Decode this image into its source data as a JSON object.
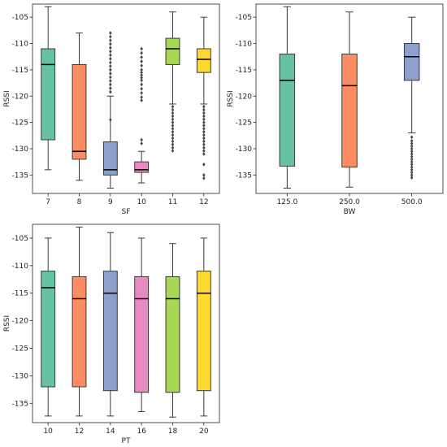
{
  "chart_data": [
    {
      "type": "box",
      "xlabel": "SF",
      "ylabel": "RSSI",
      "ylim": [
        -138.5,
        -102.5
      ],
      "yticks": [
        -105,
        -110,
        -115,
        -120,
        -125,
        -130,
        -135
      ],
      "categories": [
        "7",
        "8",
        "9",
        "10",
        "11",
        "12"
      ],
      "colors": [
        "#66c2a5",
        "#fc8d62",
        "#8da0cb",
        "#e78ac3",
        "#a6d854",
        "#ffd92f"
      ],
      "boxes": [
        {
          "q1": -128.3,
          "median": -114.0,
          "q3": -111.0,
          "whislo": -134.0,
          "whishi": -103.0,
          "fliers": []
        },
        {
          "q1": -132.0,
          "median": -130.5,
          "q3": -114.0,
          "whislo": -136.0,
          "whishi": -108.0,
          "fliers": []
        },
        {
          "q1": -135.0,
          "median": -134.0,
          "q3": -128.7,
          "whislo": -137.5,
          "whishi": -120.0,
          "fliers": [
            -108,
            -108.7,
            -109.4,
            -110.1,
            -110.8,
            -111.5,
            -112.2,
            -112.9,
            -113.6,
            -114.3,
            -115,
            -115.7,
            -116.4,
            -117.1,
            -117.8,
            -118.5,
            -119.2,
            -124.5
          ]
        },
        {
          "q1": -134.5,
          "median": -134.0,
          "q3": -132.5,
          "whislo": -136.5,
          "whishi": -130.5,
          "fliers": [
            -111,
            -111.8,
            -112.6,
            -113.4,
            -114.2,
            -115,
            -115.5,
            -116,
            -116.5,
            -117,
            -117.8,
            -118.6,
            -119.4,
            -120.2,
            -120.8,
            -128.3,
            -129
          ]
        },
        {
          "q1": -114.0,
          "median": -111.0,
          "q3": -109.0,
          "whislo": -121.5,
          "whishi": -104.0,
          "fliers": [
            -122,
            -122.6,
            -123.2,
            -123.8,
            -124.4,
            -125,
            -125.6,
            -126.2,
            -126.8,
            -127.4,
            -128,
            -128.6,
            -129.2,
            -129.8,
            -130.4
          ]
        },
        {
          "q1": -115.5,
          "median": -113.0,
          "q3": -111.0,
          "whislo": -121.5,
          "whishi": -105.0,
          "fliers": [
            -122,
            -122.6,
            -123.2,
            -123.8,
            -124.4,
            -125,
            -125.6,
            -126.2,
            -126.8,
            -127.4,
            -128,
            -128.6,
            -129.2,
            -129.8,
            -130.4,
            -131,
            -133,
            -135,
            -135.6
          ]
        }
      ]
    },
    {
      "type": "box",
      "xlabel": "BW",
      "ylabel": "RSSI",
      "ylim": [
        -138.5,
        -102.5
      ],
      "yticks": [
        -105,
        -110,
        -115,
        -120,
        -125,
        -130,
        -135
      ],
      "categories": [
        "125.0",
        "250.0",
        "500.0"
      ],
      "colors": [
        "#66c2a5",
        "#fc8d62",
        "#8da0cb"
      ],
      "boxes": [
        {
          "q1": -133.3,
          "median": -117.0,
          "q3": -112.0,
          "whislo": -137.5,
          "whishi": -103.0,
          "fliers": []
        },
        {
          "q1": -133.5,
          "median": -118.0,
          "q3": -112.0,
          "whislo": -137.3,
          "whishi": -104.0,
          "fliers": []
        },
        {
          "q1": -117.0,
          "median": -112.5,
          "q3": -110.0,
          "whislo": -127.0,
          "whishi": -105.0,
          "fliers": [
            -127.8,
            -128.5,
            -129,
            -129.5,
            -130,
            -130.5,
            -131,
            -131.5,
            -132,
            -132.5,
            -133,
            -133.5,
            -134,
            -134.5,
            -135,
            -135.5
          ]
        }
      ]
    },
    {
      "type": "box",
      "xlabel": "PT",
      "ylabel": "RSSI",
      "ylim": [
        -138.5,
        -102.5
      ],
      "yticks": [
        -105,
        -110,
        -115,
        -120,
        -125,
        -130,
        -135
      ],
      "categories": [
        "10",
        "12",
        "14",
        "16",
        "18",
        "20"
      ],
      "colors": [
        "#66c2a5",
        "#fc8d62",
        "#8da0cb",
        "#e78ac3",
        "#a6d854",
        "#ffd92f"
      ],
      "boxes": [
        {
          "q1": -132.0,
          "median": -114.0,
          "q3": -111.0,
          "whislo": -137.3,
          "whishi": -105.0,
          "fliers": []
        },
        {
          "q1": -132.0,
          "median": -116.0,
          "q3": -112.0,
          "whislo": -137.3,
          "whishi": -103.0,
          "fliers": []
        },
        {
          "q1": -132.7,
          "median": -115.0,
          "q3": -111.0,
          "whislo": -137.3,
          "whishi": -104.0,
          "fliers": []
        },
        {
          "q1": -133.0,
          "median": -116.0,
          "q3": -112.0,
          "whislo": -136.5,
          "whishi": -105.0,
          "fliers": []
        },
        {
          "q1": -133.0,
          "median": -116.0,
          "q3": -112.0,
          "whislo": -137.5,
          "whishi": -106.0,
          "fliers": []
        },
        {
          "q1": -132.7,
          "median": -115.0,
          "q3": -111.0,
          "whislo": -137.3,
          "whishi": -105.0,
          "fliers": []
        }
      ]
    }
  ]
}
